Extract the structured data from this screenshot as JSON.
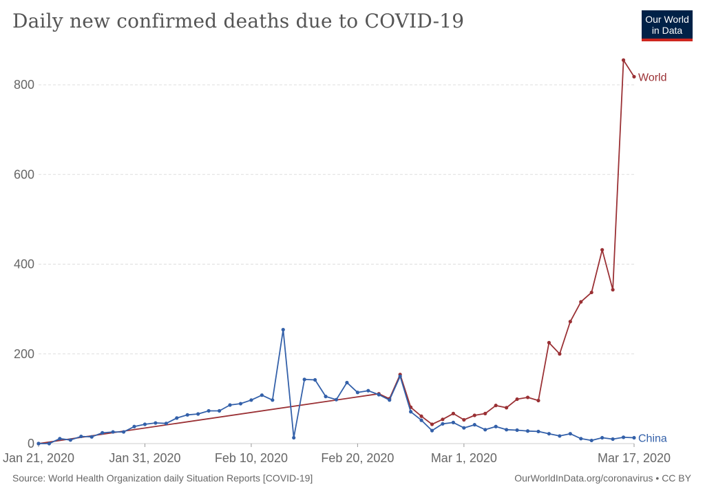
{
  "title": "Daily new confirmed deaths due to COVID-19",
  "logo": {
    "line1": "Our World",
    "line2": "in Data"
  },
  "footer": {
    "source": "Source: World Health Organization daily Situation Reports [COVID-19]",
    "credit": "OurWorldInData.org/coronavirus • CC BY"
  },
  "chart_data": {
    "type": "line",
    "title": "Daily new confirmed deaths due to COVID-19",
    "x_axis": {
      "start": "2020-01-21",
      "end": "2020-03-17",
      "tick_labels": [
        "Jan 21, 2020",
        "Jan 31, 2020",
        "Feb 10, 2020",
        "Feb 20, 2020",
        "Mar 1, 2020",
        "Mar 17, 2020"
      ]
    },
    "y_axis": {
      "ylim": [
        0,
        860
      ],
      "ticks": [
        0,
        200,
        400,
        600,
        800
      ]
    },
    "grid": "horizontal dashed",
    "legend": "end-of-line labels",
    "series": [
      {
        "name": "World",
        "color": "#9a3034",
        "points": [
          [
            "2020-01-21",
            0
          ],
          [
            "2020-02-22",
            111
          ],
          [
            "2020-02-23",
            100
          ],
          [
            "2020-02-24",
            154
          ],
          [
            "2020-02-25",
            81
          ],
          [
            "2020-02-26",
            61
          ],
          [
            "2020-02-27",
            43
          ],
          [
            "2020-02-28",
            54
          ],
          [
            "2020-02-29",
            67
          ],
          [
            "2020-03-01",
            53
          ],
          [
            "2020-03-02",
            63
          ],
          [
            "2020-03-03",
            67
          ],
          [
            "2020-03-04",
            85
          ],
          [
            "2020-03-05",
            80
          ],
          [
            "2020-03-06",
            99
          ],
          [
            "2020-03-07",
            103
          ],
          [
            "2020-03-08",
            96
          ],
          [
            "2020-03-09",
            225
          ],
          [
            "2020-03-10",
            200
          ],
          [
            "2020-03-11",
            272
          ],
          [
            "2020-03-12",
            316
          ],
          [
            "2020-03-13",
            337
          ],
          [
            "2020-03-14",
            432
          ],
          [
            "2020-03-15",
            343
          ],
          [
            "2020-03-16",
            855
          ],
          [
            "2020-03-17",
            818
          ]
        ]
      },
      {
        "name": "China",
        "color": "#3360a9",
        "points": [
          [
            "2020-01-21",
            0
          ],
          [
            "2020-01-22",
            0
          ],
          [
            "2020-01-23",
            11
          ],
          [
            "2020-01-24",
            8
          ],
          [
            "2020-01-25",
            16
          ],
          [
            "2020-01-26",
            15
          ],
          [
            "2020-01-27",
            24
          ],
          [
            "2020-01-28",
            26
          ],
          [
            "2020-01-29",
            26
          ],
          [
            "2020-01-30",
            38
          ],
          [
            "2020-01-31",
            43
          ],
          [
            "2020-02-01",
            46
          ],
          [
            "2020-02-02",
            45
          ],
          [
            "2020-02-03",
            57
          ],
          [
            "2020-02-04",
            64
          ],
          [
            "2020-02-05",
            66
          ],
          [
            "2020-02-06",
            73
          ],
          [
            "2020-02-07",
            73
          ],
          [
            "2020-02-08",
            86
          ],
          [
            "2020-02-09",
            89
          ],
          [
            "2020-02-10",
            97
          ],
          [
            "2020-02-11",
            108
          ],
          [
            "2020-02-12",
            97
          ],
          [
            "2020-02-13",
            254
          ],
          [
            "2020-02-14",
            13
          ],
          [
            "2020-02-15",
            143
          ],
          [
            "2020-02-16",
            142
          ],
          [
            "2020-02-17",
            105
          ],
          [
            "2020-02-18",
            98
          ],
          [
            "2020-02-19",
            136
          ],
          [
            "2020-02-20",
            114
          ],
          [
            "2020-02-21",
            118
          ],
          [
            "2020-02-22",
            109
          ],
          [
            "2020-02-23",
            97
          ],
          [
            "2020-02-24",
            150
          ],
          [
            "2020-02-25",
            71
          ],
          [
            "2020-02-26",
            52
          ],
          [
            "2020-02-27",
            29
          ],
          [
            "2020-02-28",
            44
          ],
          [
            "2020-02-29",
            47
          ],
          [
            "2020-03-01",
            35
          ],
          [
            "2020-03-02",
            42
          ],
          [
            "2020-03-03",
            31
          ],
          [
            "2020-03-04",
            38
          ],
          [
            "2020-03-05",
            31
          ],
          [
            "2020-03-06",
            30
          ],
          [
            "2020-03-07",
            28
          ],
          [
            "2020-03-08",
            27
          ],
          [
            "2020-03-09",
            22
          ],
          [
            "2020-03-10",
            17
          ],
          [
            "2020-03-11",
            22
          ],
          [
            "2020-03-12",
            11
          ],
          [
            "2020-03-13",
            7
          ],
          [
            "2020-03-14",
            13
          ],
          [
            "2020-03-15",
            10
          ],
          [
            "2020-03-16",
            14
          ],
          [
            "2020-03-17",
            13
          ]
        ]
      }
    ]
  }
}
